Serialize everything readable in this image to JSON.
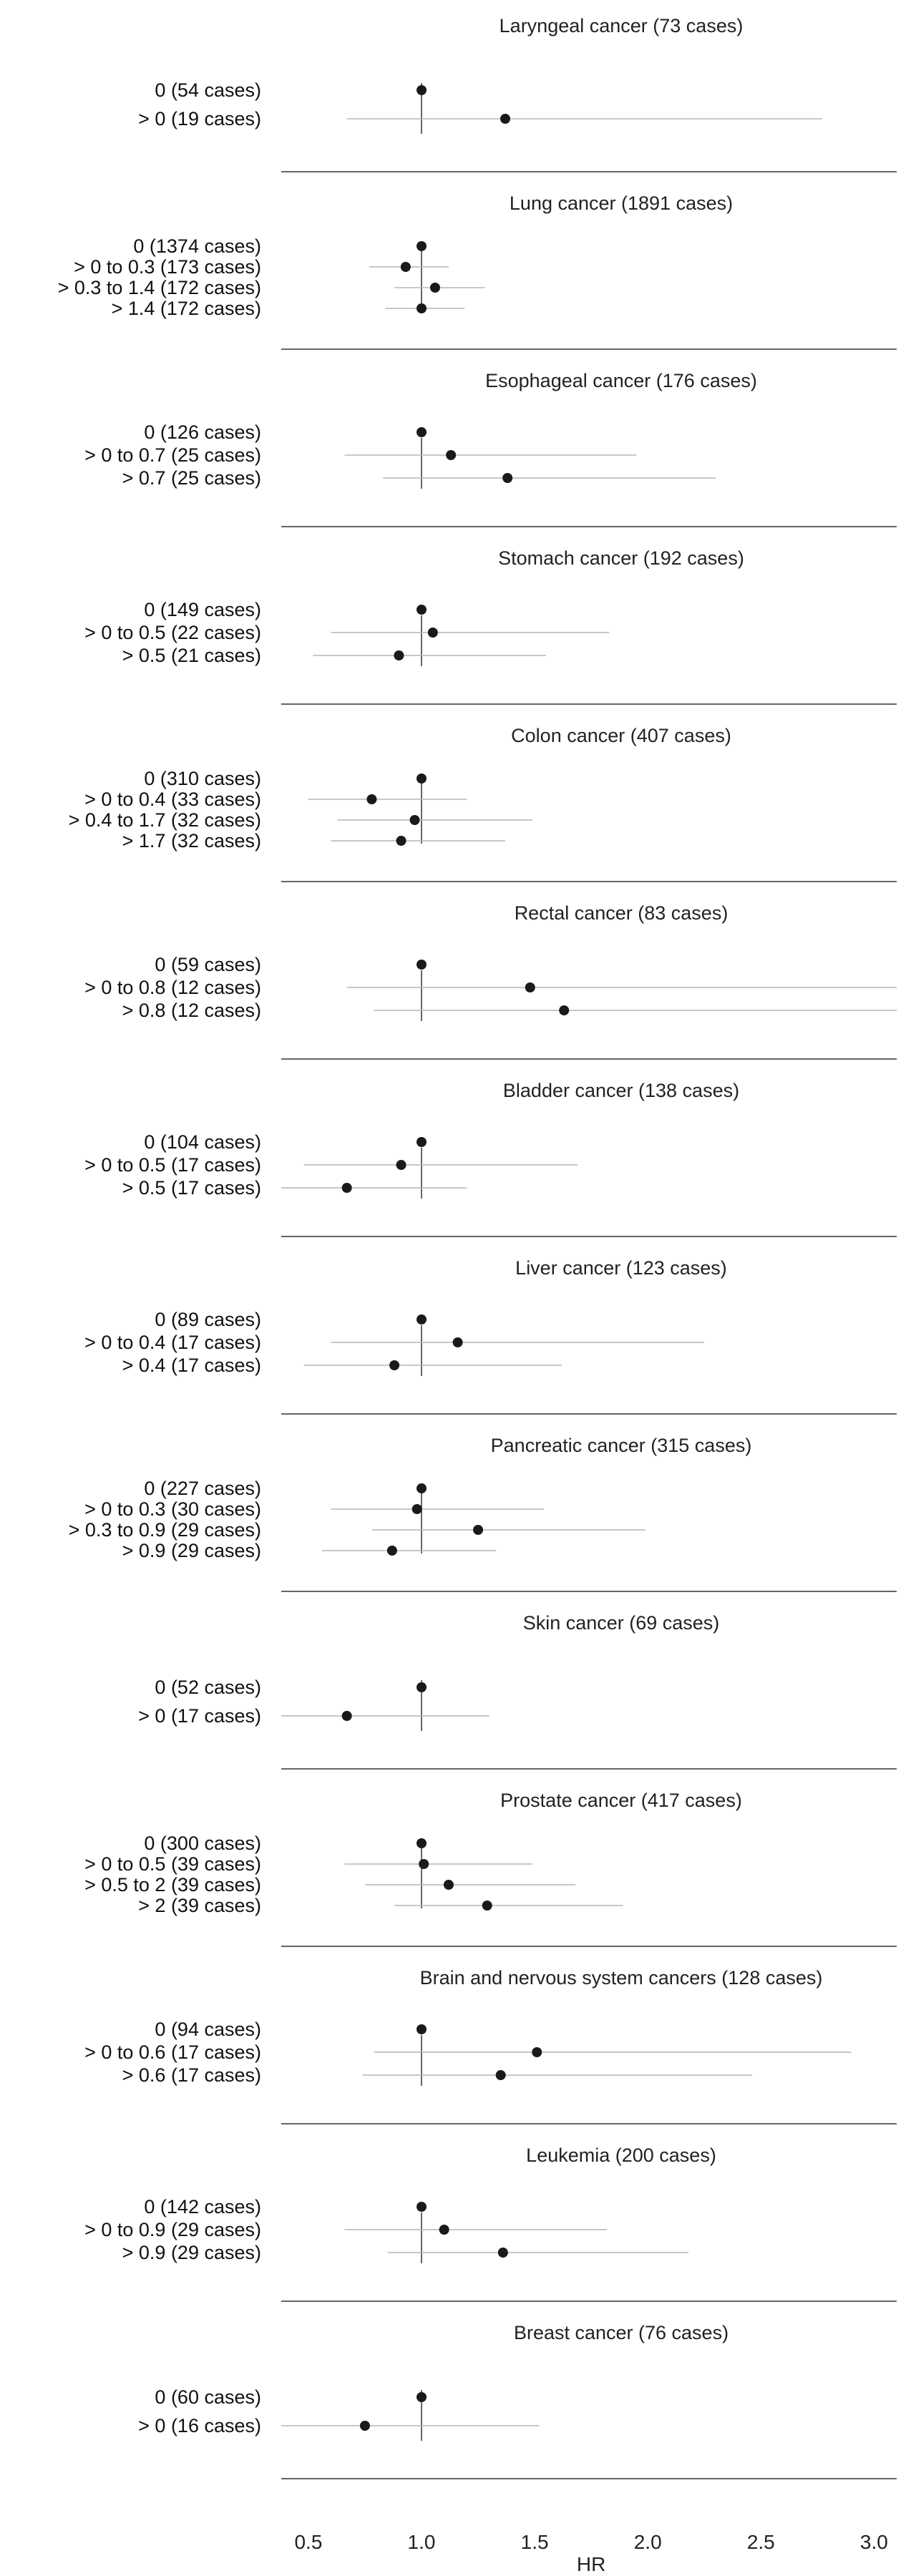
{
  "chart_data": {
    "type": "forest",
    "xlabel": "HR",
    "xlim": [
      0.38,
      3.1
    ],
    "reference_line": 1.0,
    "x_ticks": [
      0.5,
      1.0,
      1.5,
      2.0,
      2.5,
      3.0
    ],
    "x_tick_labels": [
      "0.5",
      "1.0",
      "1.5",
      "2.0",
      "2.5",
      "3.0"
    ],
    "colors": {
      "point": "#1a1a1a",
      "ci": "#b5b5b5",
      "reference": "#333333",
      "separator": "#333333"
    },
    "panels": [
      {
        "title": "Laryngeal cancer (73 cases)",
        "rows": [
          {
            "label": "0 (54 cases)",
            "hr": 1.0,
            "ci": null
          },
          {
            "label": "> 0 (19 cases)",
            "hr": 1.37,
            "ci": [
              0.67,
              2.77
            ]
          }
        ]
      },
      {
        "title": "Lung cancer (1891 cases)",
        "rows": [
          {
            "label": "0 (1374 cases)",
            "hr": 1.0,
            "ci": null
          },
          {
            "label": "> 0 to 0.3 (173 cases)",
            "hr": 0.93,
            "ci": [
              0.77,
              1.12
            ]
          },
          {
            "label": "> 0.3 to 1.4 (172 cases)",
            "hr": 1.06,
            "ci": [
              0.88,
              1.28
            ]
          },
          {
            "label": "> 1.4 (172 cases)",
            "hr": 1.0,
            "ci": [
              0.84,
              1.19
            ]
          }
        ]
      },
      {
        "title": "Esophageal cancer (176 cases)",
        "rows": [
          {
            "label": "0 (126 cases)",
            "hr": 1.0,
            "ci": null
          },
          {
            "label": "> 0 to 0.7 (25 cases)",
            "hr": 1.13,
            "ci": [
              0.66,
              1.95
            ]
          },
          {
            "label": "> 0.7 (25 cases)",
            "hr": 1.38,
            "ci": [
              0.83,
              2.3
            ]
          }
        ]
      },
      {
        "title": "Stomach cancer (192 cases)",
        "rows": [
          {
            "label": "0 (149 cases)",
            "hr": 1.0,
            "ci": null
          },
          {
            "label": "> 0 to 0.5 (22 cases)",
            "hr": 1.05,
            "ci": [
              0.6,
              1.83
            ]
          },
          {
            "label": "> 0.5 (21 cases)",
            "hr": 0.9,
            "ci": [
              0.52,
              1.55
            ]
          }
        ]
      },
      {
        "title": "Colon cancer (407 cases)",
        "rows": [
          {
            "label": "0 (310 cases)",
            "hr": 1.0,
            "ci": null
          },
          {
            "label": "> 0 to 0.4 (33 cases)",
            "hr": 0.78,
            "ci": [
              0.5,
              1.2
            ]
          },
          {
            "label": "> 0.4 to 1.7 (32 cases)",
            "hr": 0.97,
            "ci": [
              0.63,
              1.49
            ]
          },
          {
            "label": "> 1.7 (32 cases)",
            "hr": 0.91,
            "ci": [
              0.6,
              1.37
            ]
          }
        ]
      },
      {
        "title": "Rectal cancer (83 cases)",
        "rows": [
          {
            "label": "0 (59 cases)",
            "hr": 1.0,
            "ci": null
          },
          {
            "label": "> 0 to 0.8 (12 cases)",
            "hr": 1.48,
            "ci": [
              0.67,
              3.25
            ]
          },
          {
            "label": "> 0.8 (12 cases)",
            "hr": 1.63,
            "ci": [
              0.79,
              3.35
            ]
          }
        ]
      },
      {
        "title": "Bladder cancer (138 cases)",
        "rows": [
          {
            "label": "0 (104 cases)",
            "hr": 1.0,
            "ci": null
          },
          {
            "label": "> 0 to 0.5 (17 cases)",
            "hr": 0.91,
            "ci": [
              0.48,
              1.69
            ]
          },
          {
            "label": "> 0.5 (17 cases)",
            "hr": 0.67,
            "ci": [
              0.38,
              1.2
            ]
          }
        ]
      },
      {
        "title": "Liver cancer (123 cases)",
        "rows": [
          {
            "label": "0 (89 cases)",
            "hr": 1.0,
            "ci": null
          },
          {
            "label": "> 0 to 0.4 (17 cases)",
            "hr": 1.16,
            "ci": [
              0.6,
              2.25
            ]
          },
          {
            "label": "> 0.4 (17 cases)",
            "hr": 0.88,
            "ci": [
              0.48,
              1.62
            ]
          }
        ]
      },
      {
        "title": "Pancreatic cancer (315 cases)",
        "rows": [
          {
            "label": "0 (227 cases)",
            "hr": 1.0,
            "ci": null
          },
          {
            "label": "> 0 to 0.3 (30 cases)",
            "hr": 0.98,
            "ci": [
              0.6,
              1.54
            ]
          },
          {
            "label": "> 0.3 to 0.9 (29 cases)",
            "hr": 1.25,
            "ci": [
              0.78,
              1.99
            ]
          },
          {
            "label": "> 0.9 (29 cases)",
            "hr": 0.87,
            "ci": [
              0.56,
              1.33
            ]
          }
        ]
      },
      {
        "title": "Skin cancer (69 cases)",
        "rows": [
          {
            "label": "0 (52 cases)",
            "hr": 1.0,
            "ci": null
          },
          {
            "label": "> 0 (17 cases)",
            "hr": 0.67,
            "ci": [
              0.38,
              1.3
            ]
          }
        ]
      },
      {
        "title": "Prostate cancer (417 cases)",
        "rows": [
          {
            "label": "0 (300 cases)",
            "hr": 1.0,
            "ci": null
          },
          {
            "label": "> 0 to 0.5 (39 cases)",
            "hr": 1.01,
            "ci": [
              0.66,
              1.49
            ]
          },
          {
            "label": "> 0.5 to 2 (39 cases)",
            "hr": 1.12,
            "ci": [
              0.75,
              1.68
            ]
          },
          {
            "label": "> 2 (39 cases)",
            "hr": 1.29,
            "ci": [
              0.88,
              1.89
            ]
          }
        ]
      },
      {
        "title": "Brain and nervous system cancers (128 cases)",
        "rows": [
          {
            "label": "0 (94 cases)",
            "hr": 1.0,
            "ci": null
          },
          {
            "label": "> 0 to 0.6 (17 cases)",
            "hr": 1.51,
            "ci": [
              0.79,
              2.9
            ]
          },
          {
            "label": "> 0.6 (17 cases)",
            "hr": 1.35,
            "ci": [
              0.74,
              2.46
            ]
          }
        ]
      },
      {
        "title": "Leukemia (200 cases)",
        "rows": [
          {
            "label": "0 (142 cases)",
            "hr": 1.0,
            "ci": null
          },
          {
            "label": "> 0 to 0.9 (29 cases)",
            "hr": 1.1,
            "ci": [
              0.66,
              1.82
            ]
          },
          {
            "label": "> 0.9 (29 cases)",
            "hr": 1.36,
            "ci": [
              0.85,
              2.18
            ]
          }
        ]
      },
      {
        "title": "Breast cancer (76 cases)",
        "rows": [
          {
            "label": "0 (60 cases)",
            "hr": 1.0,
            "ci": null
          },
          {
            "label": "> 0 (16 cases)",
            "hr": 0.75,
            "ci": [
              0.38,
              1.52
            ]
          }
        ]
      }
    ]
  }
}
